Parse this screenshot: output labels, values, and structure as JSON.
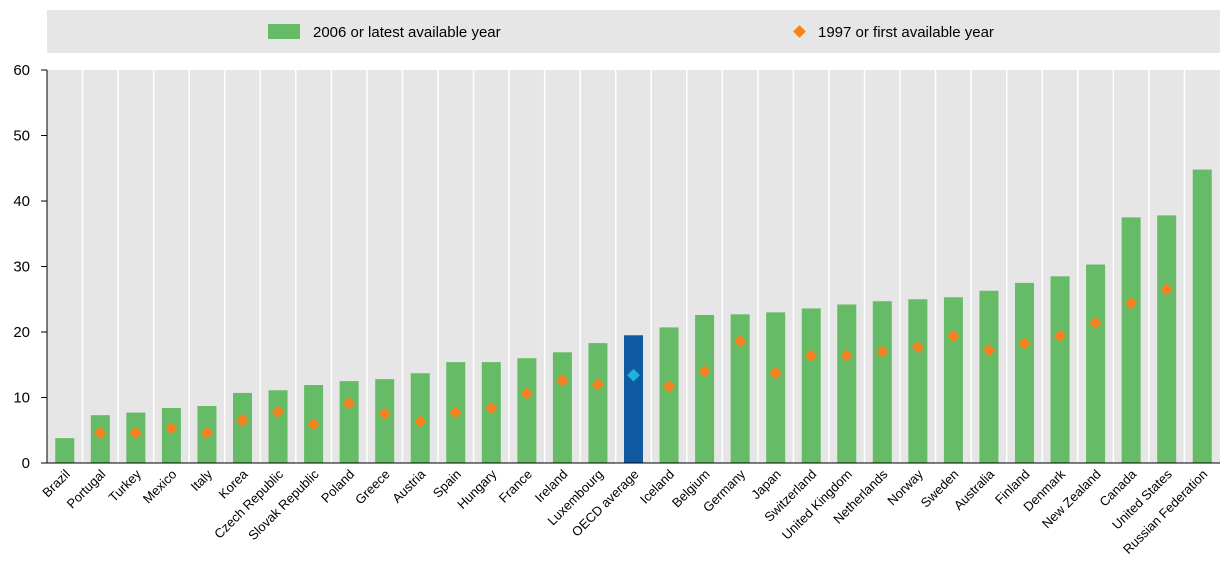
{
  "chart_data": {
    "type": "bar",
    "title": "",
    "xlabel": "",
    "ylabel": "",
    "ylim": [
      0,
      60
    ],
    "yticks": [
      0,
      10,
      20,
      30,
      40,
      50,
      60
    ],
    "grid": "vertical",
    "legend_position": "top",
    "categories": [
      "Brazil",
      "Portugal",
      "Turkey",
      "Mexico",
      "Italy",
      "Korea",
      "Czech Republic",
      "Slovak Republic",
      "Poland",
      "Greece",
      "Austria",
      "Spain",
      "Hungary",
      "France",
      "Ireland",
      "Luxembourg",
      "OECD average",
      "Iceland",
      "Belgium",
      "Germany",
      "Japan",
      "Switzerland",
      "United Kingdom",
      "Netherlands",
      "Norway",
      "Sweden",
      "Australia",
      "Finland",
      "Denmark",
      "New Zealand",
      "Canada",
      "United States",
      "Russian Federation"
    ],
    "highlight_category": "OECD average",
    "series": [
      {
        "name": "2006 or latest available year",
        "kind": "bar",
        "color": "#66bb66",
        "highlight_color": "#0f5aa0",
        "values": [
          3.8,
          7.3,
          7.7,
          8.4,
          8.7,
          10.7,
          11.1,
          11.9,
          12.5,
          12.8,
          13.7,
          15.4,
          15.4,
          16.0,
          16.9,
          18.3,
          19.5,
          20.7,
          22.6,
          22.7,
          23.0,
          23.6,
          24.2,
          24.7,
          25.0,
          25.3,
          26.3,
          27.5,
          28.5,
          30.3,
          37.5,
          37.8,
          44.8
        ]
      },
      {
        "name": "1997 or first available year",
        "kind": "marker",
        "color": "#f58220",
        "highlight_color": "#20b2d8",
        "values": [
          null,
          4.6,
          4.6,
          5.3,
          4.6,
          6.5,
          7.8,
          5.9,
          9.1,
          7.5,
          6.3,
          7.7,
          8.4,
          10.6,
          12.6,
          12.0,
          13.4,
          11.7,
          14.0,
          18.6,
          13.7,
          16.4,
          16.4,
          17.0,
          17.7,
          19.4,
          17.2,
          18.2,
          19.4,
          21.4,
          24.4,
          26.5,
          null
        ]
      }
    ]
  }
}
